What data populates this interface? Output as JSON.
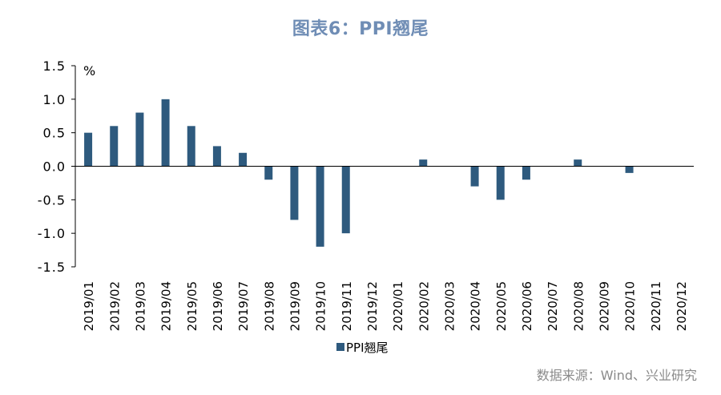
{
  "title": "图表6：PPI翘尾",
  "source": "数据来源：Wind、兴业研究",
  "chart_data": {
    "type": "bar",
    "title": "图表6：PPI翘尾",
    "ylabel": "%",
    "xlabel": "",
    "ylim": [
      -1.5,
      1.5
    ],
    "yticks": [
      "1.5",
      "1.0",
      "0.5",
      "0.0",
      "-0.5",
      "-1.0",
      "-1.5"
    ],
    "ytick_values": [
      1.5,
      1.0,
      0.5,
      0.0,
      -0.5,
      -1.0,
      -1.5
    ],
    "legend_position": "bottom-left",
    "bar_color": "#2e5a7e",
    "categories": [
      "2019/01",
      "2019/02",
      "2019/03",
      "2019/04",
      "2019/05",
      "2019/06",
      "2019/07",
      "2019/08",
      "2019/09",
      "2019/10",
      "2019/11",
      "2019/12",
      "2020/01",
      "2020/02",
      "2020/03",
      "2020/04",
      "2020/05",
      "2020/06",
      "2020/07",
      "2020/08",
      "2020/09",
      "2020/10",
      "2020/11",
      "2020/12"
    ],
    "series": [
      {
        "name": "PPI翘尾",
        "values": [
          0.5,
          0.6,
          0.8,
          1.0,
          0.6,
          0.3,
          0.2,
          -0.2,
          -0.8,
          -1.2,
          -1.0,
          0.0,
          0.0,
          0.1,
          0.0,
          -0.3,
          -0.5,
          -0.2,
          0.0,
          0.1,
          0.0,
          -0.1,
          0.0,
          0.0
        ]
      }
    ]
  }
}
